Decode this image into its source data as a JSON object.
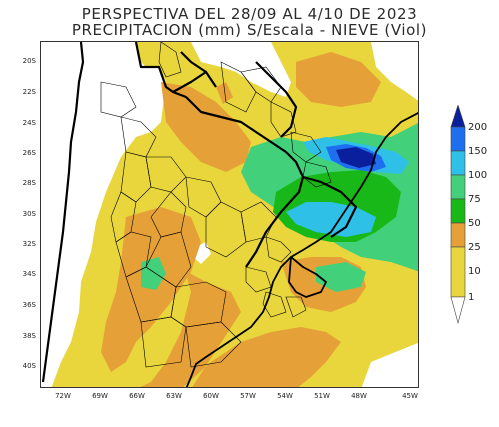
{
  "title": {
    "line1": "PERSPECTIVA DEL 28/09 AL 4/10 DE 2023",
    "line2": "PRECIPITACION (mm) S/Escala - NIEVE (Viol)"
  },
  "lat_labels": [
    "20S",
    "22S",
    "24S",
    "26S",
    "28S",
    "30S",
    "32S",
    "34S",
    "36S",
    "38S",
    "40S"
  ],
  "lon_labels": [
    "72W",
    "69W",
    "66W",
    "63W",
    "60W",
    "57W",
    "54W",
    "51W",
    "48W",
    "45W"
  ],
  "colorbar": {
    "labels": [
      "200",
      "150",
      "100",
      "75",
      "50",
      "25",
      "10",
      "1"
    ],
    "colors": [
      "#0a1f9c",
      "#1e6ef0",
      "#2fc0e8",
      "#42d07a",
      "#19b819",
      "#e6a038",
      "#e8d63c",
      "#ffffff"
    ]
  }
}
